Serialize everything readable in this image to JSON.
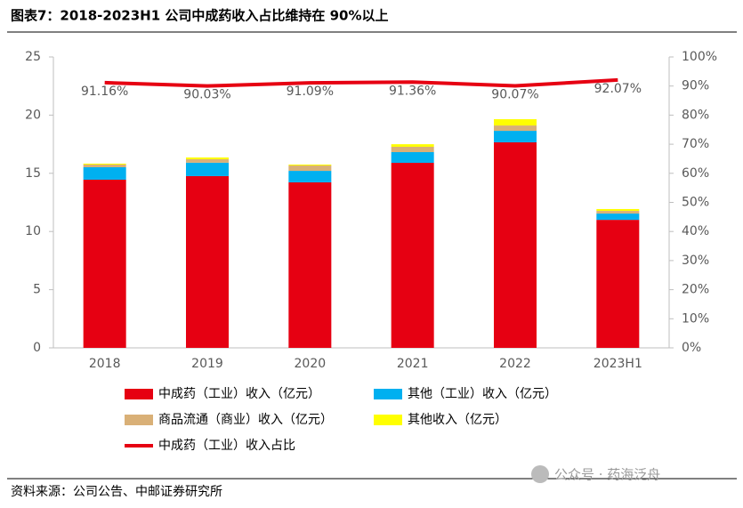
{
  "chart_data": {
    "type": "bar",
    "title": "图表7：2018-2023H1 公司中成药收入占比维持在 90%以上",
    "categories": [
      "2018",
      "2019",
      "2020",
      "2021",
      "2022",
      "2023H1"
    ],
    "series": [
      {
        "name": "中成药（工业）收入（亿元）",
        "color": "#e60012",
        "values": [
          14.45,
          14.76,
          14.22,
          15.9,
          17.66,
          11.0
        ]
      },
      {
        "name": "其他（工业）收入（亿元）",
        "color": "#00b0f0",
        "values": [
          1.07,
          1.15,
          0.99,
          0.92,
          0.99,
          0.54
        ]
      },
      {
        "name": "商品流通（商业）收入（亿元）",
        "color": "#d9b077",
        "values": [
          0.23,
          0.3,
          0.46,
          0.46,
          0.46,
          0.23
        ]
      },
      {
        "name": "其他收入（亿元）",
        "color": "#ffff00",
        "values": [
          0.08,
          0.15,
          0.08,
          0.22,
          0.54,
          0.16
        ]
      },
      {
        "name": "中成药（工业）收入占比",
        "color": "#e60012",
        "type": "line",
        "axis": "y2",
        "values": [
          91.16,
          90.03,
          91.09,
          91.36,
          90.07,
          92.07
        ],
        "value_labels": [
          "91.16%",
          "90.03%",
          "91.09%",
          "91.36%",
          "90.07%",
          "92.07%"
        ]
      }
    ],
    "ylim": [
      0,
      25
    ],
    "yticks": [
      0,
      5,
      10,
      15,
      20,
      25
    ],
    "y2lim": [
      0,
      100
    ],
    "y2ticks": [
      {
        "value": 0,
        "label": "0%"
      },
      {
        "value": 10,
        "label": "10%"
      },
      {
        "value": 20,
        "label": "20%"
      },
      {
        "value": 30,
        "label": "30%"
      },
      {
        "value": 40,
        "label": "40%"
      },
      {
        "value": 50,
        "label": "50%"
      },
      {
        "value": 60,
        "label": "60%"
      },
      {
        "value": 70,
        "label": "70%"
      },
      {
        "value": 80,
        "label": "80%"
      },
      {
        "value": 90,
        "label": "90%"
      },
      {
        "value": 100,
        "label": "100%"
      }
    ],
    "source": "资料来源：公司公告、中邮证券研究所",
    "watermark": "公众号 · 药海泛舟"
  }
}
